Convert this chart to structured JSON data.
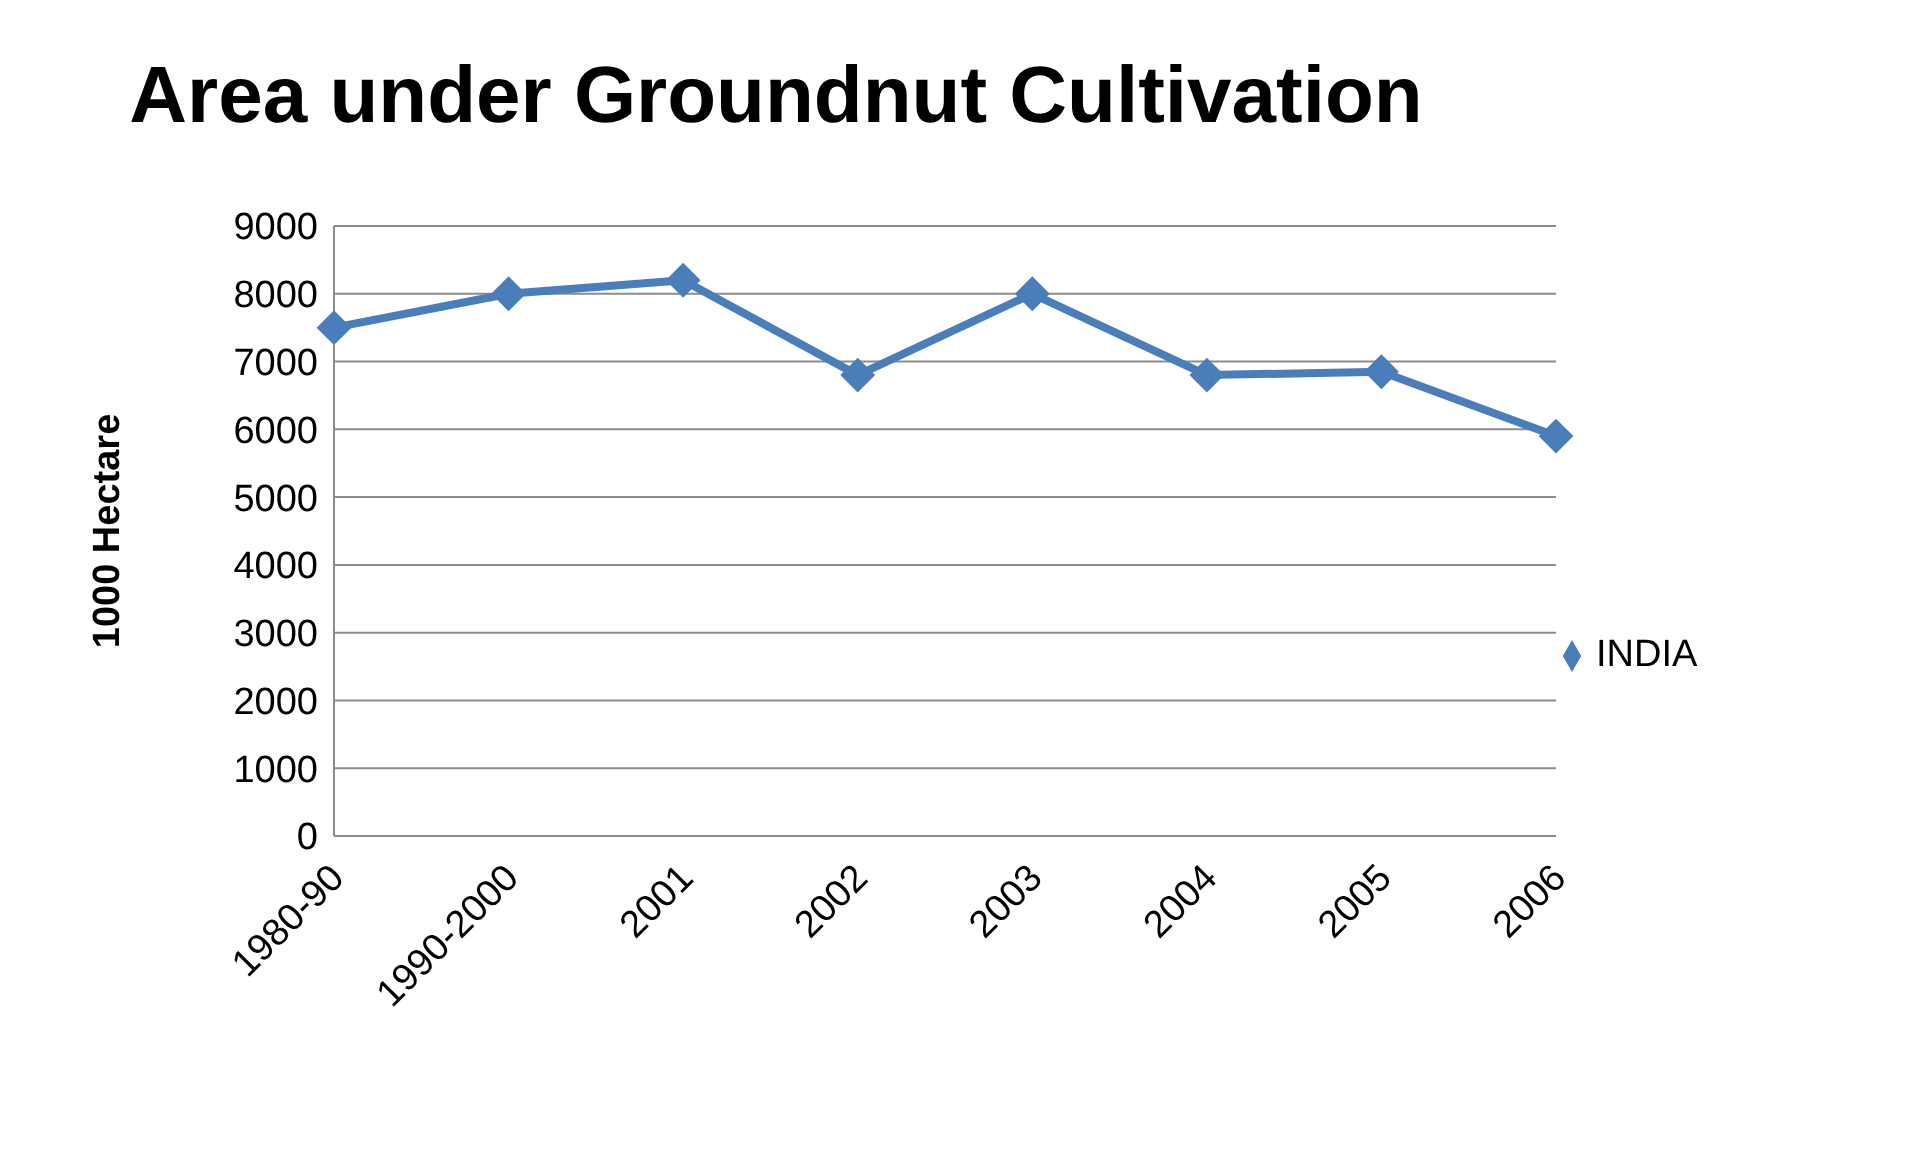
{
  "chart_data": {
    "type": "line",
    "title": "Area under Groundnut Cultivation",
    "ylabel": "1000 Hectare",
    "categories": [
      "1980-90",
      "1990-2000",
      "2001",
      "2002",
      "2003",
      "2004",
      "2005",
      "2006"
    ],
    "series": [
      {
        "name": "INDIA",
        "color": "#4a7ebb",
        "values": [
          7500,
          8000,
          8200,
          6800,
          8000,
          6800,
          6850,
          5900
        ]
      }
    ],
    "ylim": [
      0,
      9000
    ],
    "yticks": [
      0,
      1000,
      2000,
      3000,
      4000,
      5000,
      6000,
      7000,
      8000,
      9000
    ],
    "grid": "y",
    "legend": "right",
    "marker": "diamond",
    "line_style": "solid"
  }
}
